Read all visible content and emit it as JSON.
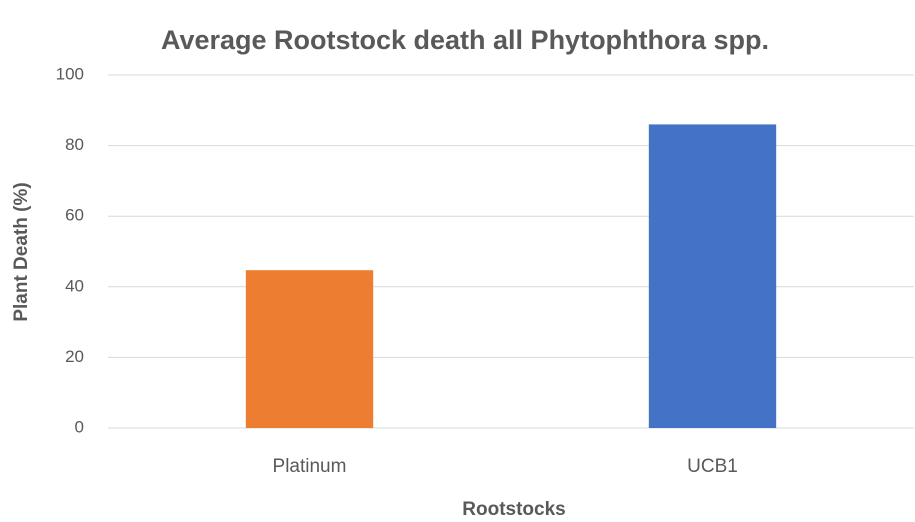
{
  "chart_data": {
    "type": "bar",
    "title": "Average Rootstock death all Phytophthora spp.",
    "x_label": "Rootstocks",
    "y_label": "Plant Death (%)",
    "categories": [
      "Platinum",
      "UCB1"
    ],
    "values": [
      44.7,
      86
    ],
    "colors": [
      "#ed7d31",
      "#4472c4"
    ],
    "ylim": [
      0,
      100
    ],
    "yticks": [
      0,
      20,
      40,
      60,
      80,
      100
    ],
    "grid": true
  }
}
